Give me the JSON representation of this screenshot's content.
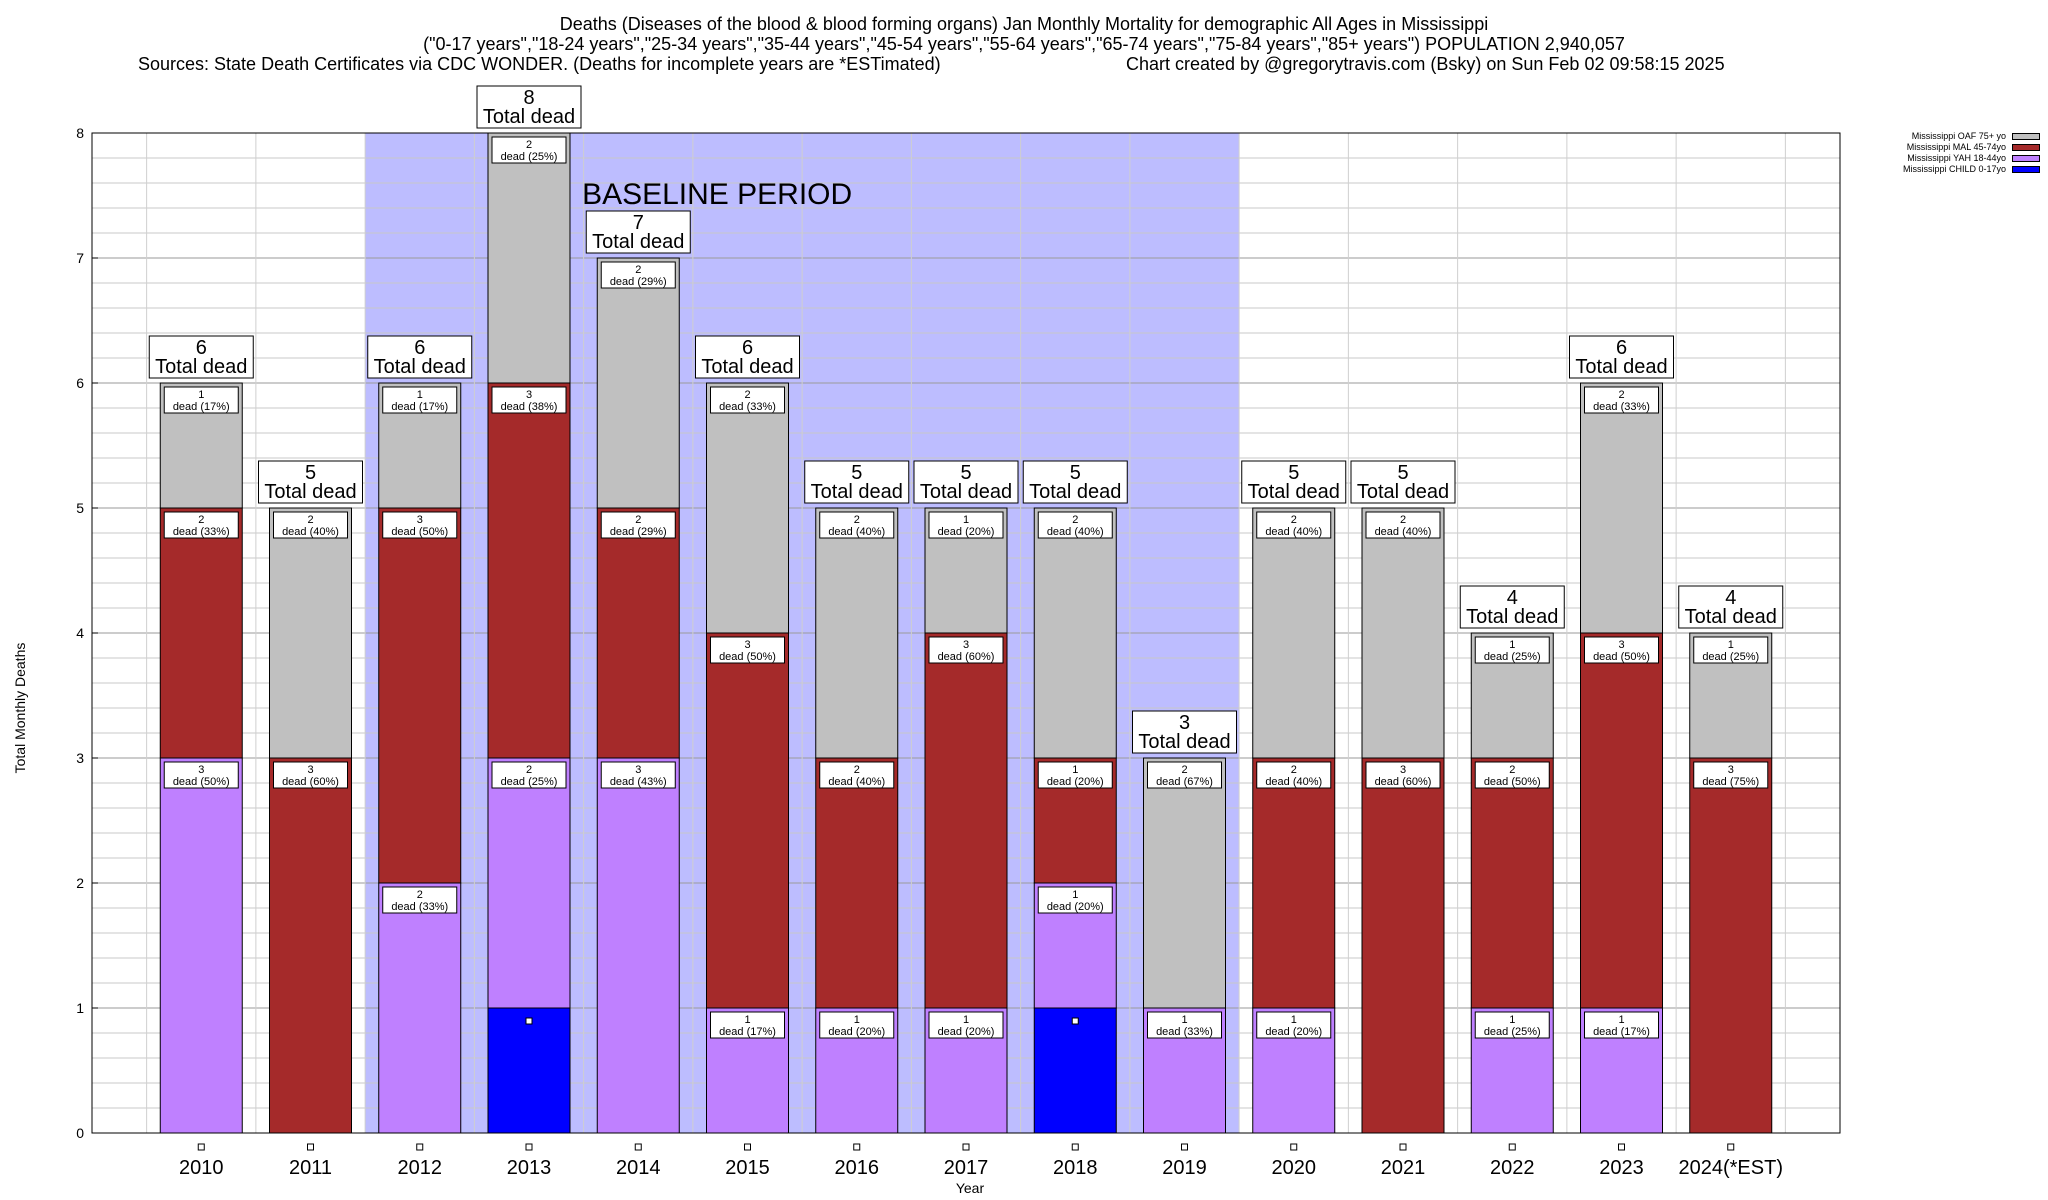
{
  "title": {
    "line1": "Deaths (Diseases of the blood & blood forming organs) Jan Monthly Mortality for demographic All Ages in Mississippi",
    "line2": "(\"0-17 years\",\"18-24 years\",\"25-34 years\",\"35-44 years\",\"45-54 years\",\"55-64 years\",\"65-74 years\",\"75-84 years\",\"85+ years\") POPULATION 2,940,057",
    "sources": "Sources: State Death Certificates via CDC WONDER. (Deaths for incomplete years are *ESTimated)",
    "credit": "Chart created by @gregorytravis.com (Bsky) on Sun Feb 02 09:58:15 2025"
  },
  "chart_data": {
    "type": "bar",
    "stacked": true,
    "categories": [
      "2010",
      "2011",
      "2012",
      "2013",
      "2014",
      "2015",
      "2016",
      "2017",
      "2018",
      "2019",
      "2020",
      "2021",
      "2022",
      "2023",
      "2024(*EST)"
    ],
    "xlabel": "Year",
    "ylabel": "Total Monthly Deaths",
    "ylim": [
      0,
      8
    ],
    "yticks": [
      0,
      1,
      2,
      3,
      4,
      5,
      6,
      7,
      8
    ],
    "grid": true,
    "legend_position": "top-right",
    "series": [
      {
        "name": "Mississippi CHILD 0-17yo",
        "color": "#0000ff",
        "values": [
          0,
          0,
          0,
          1,
          0,
          0,
          0,
          0,
          1,
          0,
          0,
          0,
          0,
          0,
          0
        ],
        "labels": [
          "",
          "",
          "",
          "",
          "",
          "",
          "",
          "",
          "",
          "",
          "",
          "",
          "",
          "",
          ""
        ]
      },
      {
        "name": "Mississippi YAH 18-44yo",
        "color": "#bf80ff",
        "values": [
          3,
          0,
          2,
          2,
          3,
          1,
          1,
          1,
          1,
          1,
          1,
          0,
          1,
          1,
          0
        ],
        "labels": [
          "dead (50%)",
          "",
          "dead (33%)",
          "dead (25%)",
          "dead (43%)",
          "dead (17%)",
          "dead (20%)",
          "dead (20%)",
          "dead (20%)",
          "dead (33%)",
          "dead (20%)",
          "",
          "dead (25%)",
          "dead (17%)",
          ""
        ]
      },
      {
        "name": "Mississippi MAL 45-74yo",
        "color": "#a52a2a",
        "values": [
          2,
          3,
          3,
          3,
          2,
          3,
          2,
          3,
          1,
          0,
          2,
          3,
          2,
          3,
          3
        ],
        "labels": [
          "dead (33%)",
          "dead (60%)",
          "dead (50%)",
          "dead (38%)",
          "dead (29%)",
          "dead (50%)",
          "dead (40%)",
          "dead (60%)",
          "dead (20%)",
          "",
          "dead (40%)",
          "dead (60%)",
          "dead (50%)",
          "dead (50%)",
          "dead (75%)"
        ]
      },
      {
        "name": "Mississippi OAF 75+ yo",
        "color": "#c0c0c0",
        "values": [
          1,
          2,
          1,
          2,
          2,
          2,
          2,
          1,
          2,
          2,
          2,
          2,
          1,
          2,
          1
        ],
        "labels": [
          "dead (17%)",
          "dead (40%)",
          "dead (17%)",
          "dead (25%)",
          "dead (29%)",
          "dead (33%)",
          "dead (40%)",
          "dead (20%)",
          "dead (40%)",
          "dead (67%)",
          "dead (40%)",
          "dead (40%)",
          "dead (25%)",
          "dead (33%)",
          "dead (25%)"
        ]
      }
    ],
    "totals": [
      6,
      5,
      6,
      8,
      7,
      6,
      5,
      5,
      5,
      3,
      5,
      5,
      4,
      6,
      4
    ],
    "total_label": "Total dead",
    "baseline": {
      "label": "BASELINE PERIOD",
      "from": "2012",
      "to": "2019"
    }
  },
  "legend_order": [
    3,
    2,
    1,
    0
  ],
  "colors": {
    "baseline_band": "#bdbdff",
    "label_box_border": "#000000",
    "background": "#ffffff"
  }
}
